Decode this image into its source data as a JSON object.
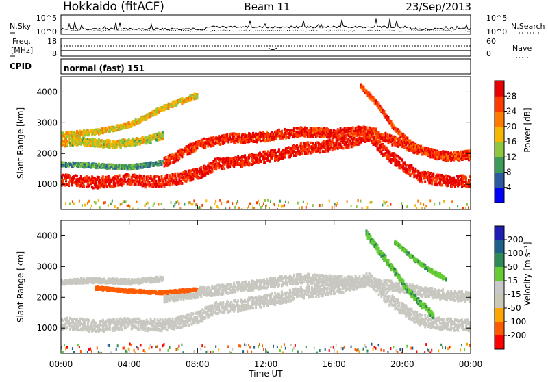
{
  "header": {
    "station": "Hokkaido (fitACF)",
    "beam": "Beam 11",
    "date": "23/Sep/2013"
  },
  "noise_panel": {
    "left_label": "N.Sky",
    "right_label": "N.Search",
    "left_ticks": [
      "10^5",
      "10^0"
    ],
    "right_ticks": [
      "10^5",
      "10^0"
    ]
  },
  "freq_panel": {
    "left_label_1": "Freq.",
    "left_label_2": "[MHz]",
    "right_label": "Nave",
    "left_ticks": [
      "18",
      "8"
    ],
    "right_ticks": [
      "60",
      "0"
    ]
  },
  "cpid_panel": {
    "label": "CPID",
    "mode": "normal (fast) 151"
  },
  "colors": {
    "power": [
      "#0000ff",
      "#2c5aa0",
      "#3c9a5a",
      "#8ec63f",
      "#f5b700",
      "#ff7a00",
      "#ff3c00",
      "#e60000"
    ],
    "velocity": [
      "#ff0000",
      "#ff5a00",
      "#ffa500",
      "#c8c8b4",
      "#c8c8c8",
      "#66cc33",
      "#2e8b57",
      "#1f5f8b",
      "#1e1eb4"
    ],
    "ground_scatter": "#c8c8c0"
  },
  "chart_data": [
    {
      "type": "heatmap",
      "name": "power",
      "ylabel": "Slant Range [km]",
      "yticks": [
        1000,
        2000,
        3000,
        4000
      ],
      "ylim": [
        180,
        4500
      ],
      "xlim": [
        0,
        24
      ],
      "colorbar_label": "Power [dB]",
      "colorbar_ticks": [
        4,
        8,
        12,
        16,
        20,
        24,
        28
      ],
      "colorbar_range": [
        0,
        32
      ],
      "bands": [
        {
          "points": [
            [
              0,
              1150
            ],
            [
              1,
              1120
            ],
            [
              2,
              1050
            ],
            [
              3,
              1100
            ],
            [
              4,
              1150
            ],
            [
              5,
              1080
            ],
            [
              6,
              1100
            ],
            [
              7,
              1200
            ],
            [
              8,
              1350
            ],
            [
              9,
              1650
            ],
            [
              10,
              1700
            ],
            [
              11,
              1800
            ],
            [
              12,
              1900
            ],
            [
              13,
              2000
            ],
            [
              14,
              2150
            ],
            [
              15,
              2200
            ],
            [
              16,
              2300
            ],
            [
              17,
              2400
            ],
            [
              18,
              2600
            ],
            [
              19,
              2000
            ],
            [
              20,
              1600
            ],
            [
              21,
              1250
            ],
            [
              22,
              1150
            ],
            [
              23,
              1100
            ],
            [
              24,
              1100
            ]
          ],
          "width": 360,
          "level": 29
        },
        {
          "points": [
            [
              6,
              1700
            ],
            [
              7,
              2000
            ],
            [
              8,
              2300
            ],
            [
              9,
              2400
            ],
            [
              10,
              2500
            ],
            [
              11,
              2500
            ],
            [
              12,
              2550
            ],
            [
              13,
              2650
            ],
            [
              14,
              2700
            ],
            [
              15,
              2700
            ],
            [
              16,
              2650
            ],
            [
              17,
              2700
            ],
            [
              18,
              2750
            ],
            [
              19,
              2500
            ],
            [
              20,
              2300
            ],
            [
              21,
              2100
            ],
            [
              22,
              1950
            ],
            [
              23,
              1900
            ],
            [
              24,
              1950
            ]
          ],
          "width": 300,
          "level": 28
        },
        {
          "points": [
            [
              0,
              2350
            ],
            [
              1,
              2400
            ],
            [
              2,
              2350
            ],
            [
              3,
              2300
            ],
            [
              4,
              2350
            ],
            [
              5,
              2450
            ],
            [
              6,
              2600
            ]
          ],
          "width": 240,
          "level": 16
        },
        {
          "points": [
            [
              0,
              2600
            ],
            [
              1,
              2650
            ],
            [
              2,
              2700
            ],
            [
              3,
              2800
            ],
            [
              4,
              2950
            ],
            [
              5,
              3200
            ],
            [
              6,
              3500
            ],
            [
              7,
              3700
            ],
            [
              8,
              3900
            ]
          ],
          "width": 160,
          "level": 18
        },
        {
          "points": [
            [
              17.5,
              4200
            ],
            [
              18.5,
              3600
            ],
            [
              19.5,
              2800
            ],
            [
              20.5,
              2300
            ],
            [
              21.5,
              2000
            ],
            [
              22.5,
              1900
            ],
            [
              24,
              1900
            ]
          ],
          "width": 150,
          "level": 26
        },
        {
          "points": [
            [
              0,
              1650
            ],
            [
              2,
              1600
            ],
            [
              4,
              1550
            ],
            [
              6,
              1700
            ]
          ],
          "width": 130,
          "level": 10
        }
      ]
    },
    {
      "type": "heatmap",
      "name": "velocity",
      "ylabel": "Slant Range [km]",
      "xlabel": "Time UT",
      "yticks": [
        1000,
        2000,
        3000,
        4000
      ],
      "ylim": [
        180,
        4500
      ],
      "xlim": [
        0,
        24
      ],
      "xticks": [
        "00:00",
        "04:00",
        "08:00",
        "12:00",
        "16:00",
        "20:00",
        "00:00"
      ],
      "colorbar_label": "Velocity [m s⁻¹]",
      "colorbar_ticks": [
        "200",
        "100",
        "50",
        "15",
        "-15",
        "-50",
        "-100",
        "-200"
      ],
      "bands": [
        {
          "points": [
            [
              0,
              1150
            ],
            [
              1,
              1120
            ],
            [
              2,
              1050
            ],
            [
              3,
              1100
            ],
            [
              4,
              1150
            ],
            [
              5,
              1080
            ],
            [
              6,
              1100
            ],
            [
              7,
              1200
            ],
            [
              8,
              1350
            ],
            [
              9,
              1650
            ],
            [
              10,
              1700
            ],
            [
              11,
              1800
            ],
            [
              12,
              1900
            ],
            [
              13,
              2000
            ],
            [
              14,
              2150
            ],
            [
              15,
              2200
            ],
            [
              16,
              2300
            ],
            [
              17,
              2400
            ],
            [
              18,
              2600
            ],
            [
              19,
              2000
            ],
            [
              20,
              1600
            ],
            [
              21,
              1250
            ],
            [
              22,
              1150
            ],
            [
              23,
              1100
            ],
            [
              24,
              1100
            ]
          ],
          "width": 380,
          "level": 0
        },
        {
          "points": [
            [
              6,
              2000
            ],
            [
              8,
              2150
            ],
            [
              10,
              2300
            ],
            [
              12,
              2450
            ],
            [
              14,
              2600
            ],
            [
              16,
              2550
            ],
            [
              18,
              2500
            ],
            [
              20,
              2300
            ],
            [
              22,
              2100
            ],
            [
              24,
              2000
            ]
          ],
          "width": 320,
          "level": 0
        },
        {
          "points": [
            [
              0,
              2500
            ],
            [
              2,
              2550
            ],
            [
              4,
              2500
            ],
            [
              6,
              2600
            ]
          ],
          "width": 160,
          "level": 0
        },
        {
          "points": [
            [
              17.8,
              4100
            ],
            [
              18.6,
              3500
            ],
            [
              19.4,
              2900
            ],
            [
              20.2,
              2300
            ],
            [
              21,
              1800
            ],
            [
              21.8,
              1400
            ]
          ],
          "width": 200,
          "level": 40
        },
        {
          "points": [
            [
              19.5,
              3800
            ],
            [
              20.5,
              3300
            ],
            [
              21.5,
              2900
            ],
            [
              22.5,
              2600
            ]
          ],
          "width": 120,
          "level": 40
        },
        {
          "points": [
            [
              2,
              2300
            ],
            [
              4,
              2200
            ],
            [
              6,
              2150
            ],
            [
              8,
              2250
            ]
          ],
          "width": 100,
          "level": -70
        }
      ]
    }
  ]
}
